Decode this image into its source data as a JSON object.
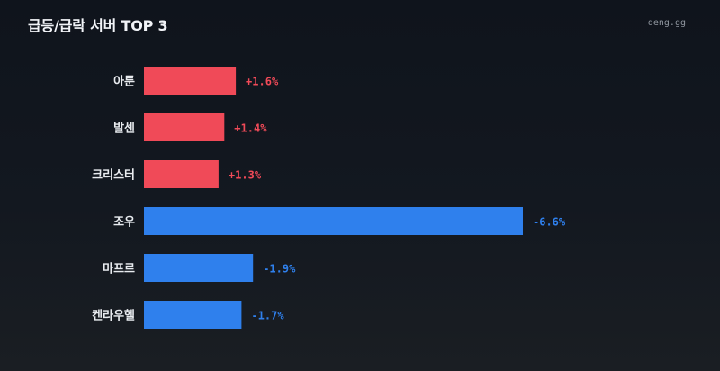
{
  "header": {
    "title": "급등/급락 서버 TOP 3",
    "brand": "deng.gg"
  },
  "colors": {
    "up": "#f04a58",
    "down": "#2f80ed"
  },
  "chart_data": {
    "type": "bar",
    "orientation": "horizontal",
    "title": "급등/급락 서버 TOP 3",
    "categories": [
      "아툰",
      "발센",
      "크리스터",
      "조우",
      "마프르",
      "켄라우헬"
    ],
    "values": [
      1.6,
      1.4,
      1.3,
      -6.6,
      -1.9,
      -1.7
    ],
    "value_labels": [
      "+1.6%",
      "+1.4%",
      "+1.3%",
      "-6.6%",
      "-1.9%",
      "-1.7%"
    ],
    "direction": [
      "up",
      "up",
      "up",
      "down",
      "down",
      "down"
    ],
    "xlim": [
      0,
      6.6
    ],
    "grid": false,
    "legend": "none"
  }
}
